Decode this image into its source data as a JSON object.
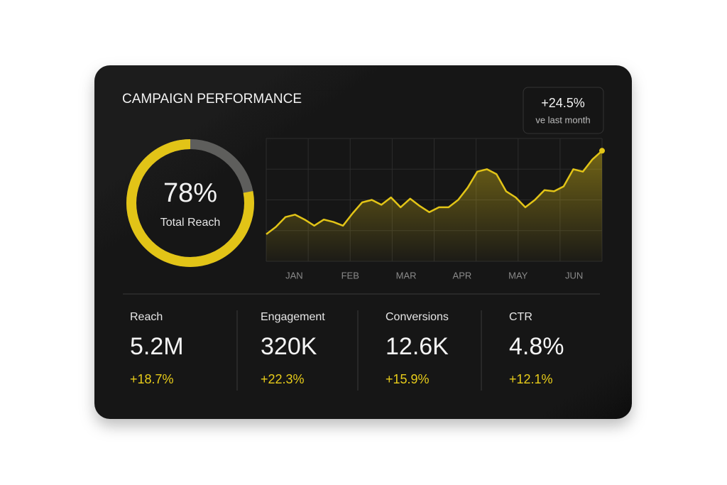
{
  "header": {
    "title": "CAMPAIGN PERFORMANCE",
    "badge_value": "+24.5%",
    "badge_label": "ve last month"
  },
  "chart_data": [
    {
      "type": "donut",
      "value": 78,
      "value_label": "78%",
      "label": "Total Reach",
      "color": "#e2c417",
      "track_color": "#5e5e5c",
      "ylim": [
        0,
        100
      ]
    },
    {
      "type": "line",
      "x_labels": [
        "JAN",
        "FEB",
        "MAR",
        "APR",
        "MAY",
        "JUN"
      ],
      "values": [
        22,
        28,
        36,
        38,
        34,
        29,
        34,
        32,
        29,
        39,
        48,
        50,
        46,
        52,
        44,
        51,
        45,
        40,
        44,
        44,
        50,
        60,
        73,
        75,
        71,
        57,
        52,
        44,
        50,
        58,
        57,
        61,
        75,
        73,
        83,
        90
      ],
      "ylim": [
        0,
        100
      ],
      "grid": true,
      "color": "#e2c417"
    }
  ],
  "stats": [
    {
      "label": "Reach",
      "value": "5.2M",
      "change": "+18.7%"
    },
    {
      "label": "Engagement",
      "value": "320K",
      "change": "+22.3%"
    },
    {
      "label": "Conversions",
      "value": "12.6K",
      "change": "+15.9%"
    },
    {
      "label": "CTR",
      "value": "4.8%",
      "change": "+12.1%"
    }
  ]
}
